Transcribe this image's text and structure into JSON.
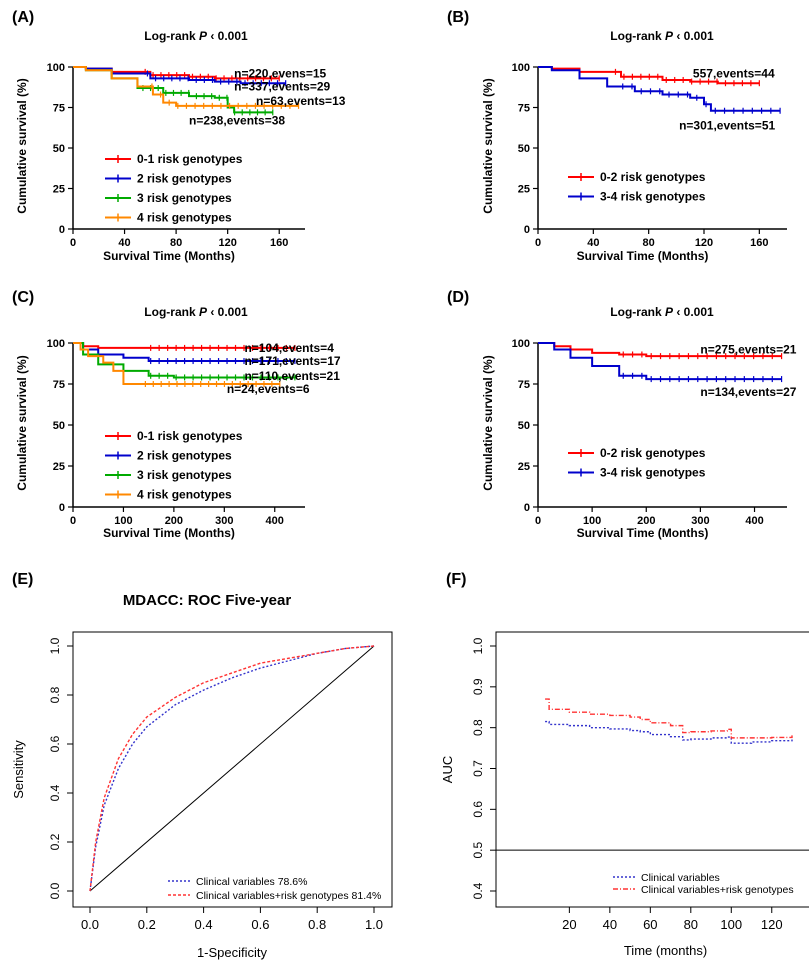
{
  "panels": [
    {
      "type": "km",
      "tag": "(A)",
      "title_pre": "Log-rank ",
      "title_italic": "P",
      "title_post": " ‹ 0.001",
      "xlabel": "Survival Time (Months)",
      "ylabel": "Cumulative survival (%)",
      "xlim": [
        0,
        180
      ],
      "ylim": [
        0,
        100
      ],
      "xticks": [
        0,
        40,
        80,
        120,
        160
      ],
      "yticks": [
        0,
        25,
        50,
        75,
        100
      ],
      "legend": "bottom-left",
      "series": [
        {
          "name": "0-1 risk genotypes",
          "color": "#ff0000",
          "x": [
            0,
            10,
            30,
            60,
            90,
            110,
            130,
            160
          ],
          "y": [
            100,
            99,
            97,
            95,
            94,
            93,
            93,
            93
          ]
        },
        {
          "name": "2 risk genotypes",
          "color": "#0000cc",
          "x": [
            0,
            10,
            30,
            60,
            90,
            110,
            130,
            165
          ],
          "y": [
            100,
            99,
            96,
            93,
            92,
            91,
            90,
            90
          ]
        },
        {
          "name": "3 risk genotypes",
          "color": "#00aa00",
          "x": [
            0,
            10,
            30,
            50,
            70,
            90,
            110,
            120,
            125,
            155
          ],
          "y": [
            100,
            98,
            93,
            87,
            84,
            82,
            81,
            75,
            72,
            72
          ]
        },
        {
          "name": "4 risk genotypes",
          "color": "#ff8800",
          "x": [
            0,
            10,
            30,
            50,
            62,
            70,
            80,
            175
          ],
          "y": [
            100,
            98,
            93,
            88,
            83,
            78,
            76,
            76
          ]
        }
      ],
      "annotations": [
        {
          "text": "n=220,evens=15",
          "x": 125,
          "y": 96
        },
        {
          "text": "n=337,events=29",
          "x": 125,
          "y": 88
        },
        {
          "text": "n=63,events=13",
          "x": 142,
          "y": 79
        },
        {
          "text": "n=238,events=38",
          "x": 90,
          "y": 67
        }
      ]
    },
    {
      "type": "km",
      "tag": "(B)",
      "title_pre": "Log-rank ",
      "title_italic": "P",
      "title_post": " ‹ 0.001",
      "xlabel": "Survival Time (Months)",
      "ylabel": "Cumulative survival (%)",
      "xlim": [
        0,
        180
      ],
      "ylim": [
        0,
        100
      ],
      "xticks": [
        0,
        40,
        80,
        120,
        160
      ],
      "yticks": [
        0,
        25,
        50,
        75,
        100
      ],
      "legend": "bottom-left",
      "series": [
        {
          "name": "0-2 risk genotypes",
          "color": "#ff0000",
          "x": [
            0,
            10,
            30,
            60,
            90,
            110,
            130,
            160
          ],
          "y": [
            100,
            99,
            97,
            94,
            92,
            91,
            90,
            90
          ]
        },
        {
          "name": "3-4 risk genotypes",
          "color": "#0000cc",
          "x": [
            0,
            10,
            30,
            50,
            70,
            90,
            110,
            120,
            125,
            175
          ],
          "y": [
            100,
            98,
            93,
            88,
            85,
            83,
            81,
            77,
            73,
            73
          ]
        }
      ],
      "annotations": [
        {
          "text": "557,events=44",
          "x": 112,
          "y": 96
        },
        {
          "text": "n=301,events=51",
          "x": 102,
          "y": 64
        }
      ]
    },
    {
      "type": "km",
      "tag": "(C)",
      "title_pre": "Log-rank ",
      "title_italic": "P",
      "title_post": " ‹ 0.001",
      "xlabel": "Survival Time (Months)",
      "ylabel": "Cumulative survival (%)",
      "xlim": [
        0,
        460
      ],
      "ylim": [
        0,
        100
      ],
      "xticks": [
        0,
        100,
        200,
        300,
        400
      ],
      "yticks": [
        0,
        25,
        50,
        75,
        100
      ],
      "legend": "bottom-left",
      "series": [
        {
          "name": "0-1 risk genotypes",
          "color": "#ff0000",
          "x": [
            0,
            20,
            50,
            100,
            200,
            300,
            440
          ],
          "y": [
            100,
            98,
            97,
            97,
            97,
            97,
            97
          ]
        },
        {
          "name": "2 risk genotypes",
          "color": "#0000cc",
          "x": [
            0,
            20,
            50,
            100,
            150,
            200,
            300,
            440
          ],
          "y": [
            100,
            96,
            93,
            91,
            89,
            89,
            89,
            89
          ]
        },
        {
          "name": "3 risk genotypes",
          "color": "#00aa00",
          "x": [
            0,
            20,
            50,
            100,
            150,
            200,
            300,
            440
          ],
          "y": [
            100,
            93,
            87,
            83,
            80,
            79,
            79,
            79
          ]
        },
        {
          "name": "4 risk genotypes",
          "color": "#ff8800",
          "x": [
            0,
            15,
            30,
            60,
            80,
            100,
            200,
            300,
            410
          ],
          "y": [
            100,
            96,
            92,
            88,
            83,
            75,
            75,
            75,
            75
          ]
        }
      ],
      "annotations": [
        {
          "text": "n=104,events=4",
          "x": 340,
          "y": 97
        },
        {
          "text": "n=171,events=17",
          "x": 340,
          "y": 89
        },
        {
          "text": "n=110,events=21",
          "x": 340,
          "y": 80
        },
        {
          "text": "n=24,events=6",
          "x": 305,
          "y": 72
        }
      ]
    },
    {
      "type": "km",
      "tag": "(D)",
      "title_pre": "Log-rank ",
      "title_italic": "P",
      "title_post": " ‹ 0.001",
      "xlabel": "Survival Time (Months)",
      "ylabel": "Cumulative survival (%)",
      "xlim": [
        0,
        460
      ],
      "ylim": [
        0,
        100
      ],
      "xticks": [
        0,
        100,
        200,
        300,
        400
      ],
      "yticks": [
        0,
        25,
        50,
        75,
        100
      ],
      "legend": "bottom-left",
      "series": [
        {
          "name": "0-2 risk genotypes",
          "color": "#ff0000",
          "x": [
            0,
            30,
            60,
            100,
            150,
            200,
            300,
            450
          ],
          "y": [
            100,
            98,
            96,
            94,
            93,
            92,
            92,
            92
          ]
        },
        {
          "name": "3-4 risk genotypes",
          "color": "#0000cc",
          "x": [
            0,
            30,
            60,
            100,
            150,
            200,
            300,
            450
          ],
          "y": [
            100,
            96,
            91,
            86,
            80,
            78,
            78,
            78
          ]
        }
      ],
      "annotations": [
        {
          "text": "n=275,events=21",
          "x": 300,
          "y": 96
        },
        {
          "text": "n=134,events=27",
          "x": 300,
          "y": 70
        }
      ]
    },
    {
      "type": "roc",
      "tag": "(E)",
      "title": "MDACC: ROC Five-year",
      "xlabel": "1-Specificity",
      "ylabel": "Sensitivity",
      "xlim": [
        0,
        1
      ],
      "ylim": [
        0,
        1
      ],
      "xticks": [
        "0.0",
        "0.2",
        "0.4",
        "0.6",
        "0.8",
        "1.0"
      ],
      "yticks": [
        "0.0",
        "0.2",
        "0.4",
        "0.6",
        "0.8",
        "1.0"
      ],
      "legend": "bottom-right",
      "series": [
        {
          "name": "Clinical variables 78.6%",
          "color": "#3333cc",
          "x": [
            0,
            0.02,
            0.05,
            0.1,
            0.15,
            0.2,
            0.3,
            0.4,
            0.5,
            0.6,
            0.7,
            0.8,
            0.9,
            1.0
          ],
          "y": [
            0,
            0.18,
            0.35,
            0.5,
            0.6,
            0.67,
            0.76,
            0.82,
            0.87,
            0.91,
            0.94,
            0.97,
            0.99,
            1.0
          ]
        },
        {
          "name": "Clinical variables+risk genotypes 81.4%",
          "color": "#ff3333",
          "x": [
            0,
            0.02,
            0.05,
            0.1,
            0.15,
            0.2,
            0.3,
            0.4,
            0.5,
            0.6,
            0.7,
            0.8,
            0.9,
            1.0
          ],
          "y": [
            0,
            0.2,
            0.38,
            0.54,
            0.64,
            0.71,
            0.79,
            0.85,
            0.89,
            0.93,
            0.95,
            0.97,
            0.99,
            1.0
          ]
        }
      ]
    },
    {
      "type": "auc",
      "tag": "(F)",
      "xlabel": "Time (months)",
      "ylabel": "AUC",
      "xlim": [
        5,
        130
      ],
      "ylim": [
        0.4,
        1.0
      ],
      "xticks": [
        "20",
        "40",
        "60",
        "80",
        "100",
        "120"
      ],
      "yticks": [
        "0.4",
        "0.5",
        "0.6",
        "0.7",
        "0.8",
        "0.9",
        "1.0"
      ],
      "legend": "bottom-right",
      "series": [
        {
          "name": "Clinical variables",
          "color": "#3333cc",
          "x": [
            8,
            10,
            20,
            30,
            40,
            50,
            55,
            60,
            70,
            76,
            80,
            90,
            98,
            100,
            110,
            120,
            130
          ],
          "y": [
            0.815,
            0.808,
            0.805,
            0.8,
            0.797,
            0.793,
            0.79,
            0.783,
            0.778,
            0.77,
            0.772,
            0.775,
            0.777,
            0.762,
            0.765,
            0.768,
            0.771
          ]
        },
        {
          "name": "Clinical variables+risk genotypes",
          "color": "#ff3333",
          "x": [
            8,
            10,
            20,
            30,
            40,
            50,
            55,
            60,
            70,
            76,
            80,
            90,
            98,
            100,
            110,
            120,
            130
          ],
          "y": [
            0.87,
            0.845,
            0.838,
            0.833,
            0.83,
            0.826,
            0.82,
            0.812,
            0.805,
            0.788,
            0.79,
            0.792,
            0.796,
            0.775,
            0.775,
            0.776,
            0.781
          ]
        }
      ],
      "reference_y": 0.5
    }
  ]
}
